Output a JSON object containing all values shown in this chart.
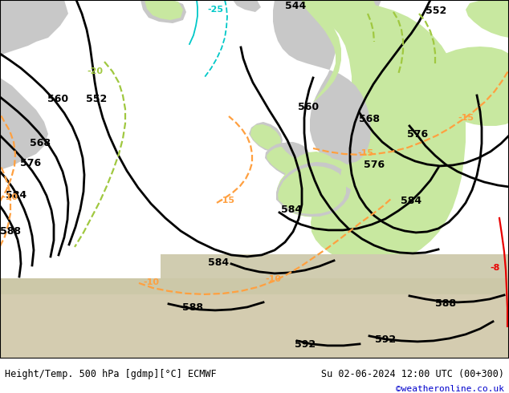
{
  "title_left": "Height/Temp. 500 hPa [gdmp][°C] ECMWF",
  "title_right": "Su 02-06-2024 12:00 UTC (00+300)",
  "credit": "©weatheronline.co.uk",
  "green": "#c8e8a0",
  "gray_land": "#c8c8c8",
  "gray_sea": "#dcdcdc",
  "gray_sea2": "#e8e8e8",
  "black": "#000000",
  "orange": "#ffa040",
  "ygreen": "#a0c840",
  "cyan": "#00c8c8",
  "red": "#e80000",
  "blue": "#0000cc",
  "fig_width": 6.34,
  "fig_height": 4.9,
  "dpi": 100
}
